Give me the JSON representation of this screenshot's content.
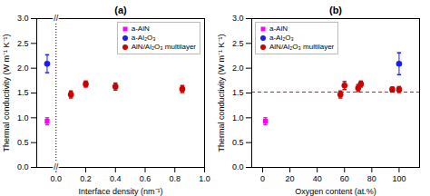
{
  "chart_data": [
    {
      "type": "scatter",
      "title": "(a)",
      "xlabel": "Interface density (nm⁻¹)",
      "ylabel": "Thermal conductivity (W m⁻¹ K⁻¹)",
      "xlim": [
        -0.13,
        1.0
      ],
      "xticks": [
        {
          "value": 0.0,
          "label": "0.0"
        },
        0.2,
        0.4,
        0.6,
        0.8,
        {
          "value": 1.0,
          "label": "1.0"
        }
      ],
      "ylim": [
        0.0,
        3.0
      ],
      "yticks": [
        {
          "value": 0.0,
          "label": "0.0"
        },
        0.5,
        {
          "value": 1.0,
          "label": "1.0"
        },
        1.5,
        {
          "value": 2.0,
          "label": "2.0"
        },
        2.5,
        {
          "value": 3.0,
          "label": "3.0"
        }
      ],
      "legend": "upper right",
      "series": [
        {
          "name": "a-AlN",
          "color": "#ff00ff",
          "marker": "square",
          "x": [
            -0.06
          ],
          "values": [
            0.93
          ],
          "yerr": [
            0.07
          ]
        },
        {
          "name": "a-Al₂O₃",
          "color": "#1a1aff",
          "marker": "circle",
          "x": [
            -0.06
          ],
          "values": [
            2.09
          ],
          "yerr": [
            0.18
          ]
        },
        {
          "name": "AlN/Al₂O₃ multilayer",
          "color": "#cc0000",
          "marker": "circle",
          "x": [
            0.1,
            0.2,
            0.4,
            0.85
          ],
          "values": [
            1.47,
            1.68,
            1.63,
            1.58
          ],
          "yerr": [
            0.07,
            0.06,
            0.07,
            0.07
          ]
        }
      ],
      "reference_lines": [
        {
          "axis": "x",
          "value": 0.0,
          "color": "#000000",
          "line_style": "dotted"
        }
      ],
      "annotations": [
        {
          "text": "//",
          "x": 0.0,
          "y": 3.0
        },
        {
          "text": "//",
          "x": 0.0,
          "y": 0.0
        }
      ]
    },
    {
      "type": "scatter",
      "title": "(b)",
      "xlabel": "Oxygen content (at.%)",
      "ylabel": "Thermal conductivity (W m⁻¹ K⁻¹)",
      "xlim": [
        -8,
        115
      ],
      "xticks": [
        0,
        20,
        40,
        60,
        80,
        100
      ],
      "ylim": [
        0.0,
        3.0
      ],
      "yticks": [
        {
          "value": 0.0,
          "label": "0.0"
        },
        0.5,
        {
          "value": 1.0,
          "label": "1.0"
        },
        1.5,
        {
          "value": 2.0,
          "label": "2.0"
        },
        2.5,
        {
          "value": 3.0,
          "label": "3.0"
        }
      ],
      "legend": "upper left",
      "series": [
        {
          "name": "a-AlN",
          "color": "#ff00ff",
          "marker": "square",
          "x": [
            2
          ],
          "values": [
            0.93
          ],
          "yerr": [
            0.07
          ]
        },
        {
          "name": "a-Al₂O₃",
          "color": "#1a1aff",
          "marker": "circle",
          "x": [
            100
          ],
          "values": [
            2.09
          ],
          "yerr": [
            0.22
          ]
        },
        {
          "name": "AlN/Al₂O₃ multilayer",
          "color": "#cc0000",
          "marker": "circle",
          "x": [
            57,
            60,
            70,
            72,
            95,
            100
          ],
          "values": [
            1.47,
            1.65,
            1.6,
            1.68,
            1.57,
            1.57
          ],
          "yerr": [
            0.07,
            0.08,
            0.07,
            0.06,
            0.05,
            0.06
          ]
        }
      ],
      "reference_lines": [
        {
          "axis": "y",
          "value": 1.52,
          "color": "#ff0000",
          "line_style": "dashed"
        }
      ]
    }
  ]
}
